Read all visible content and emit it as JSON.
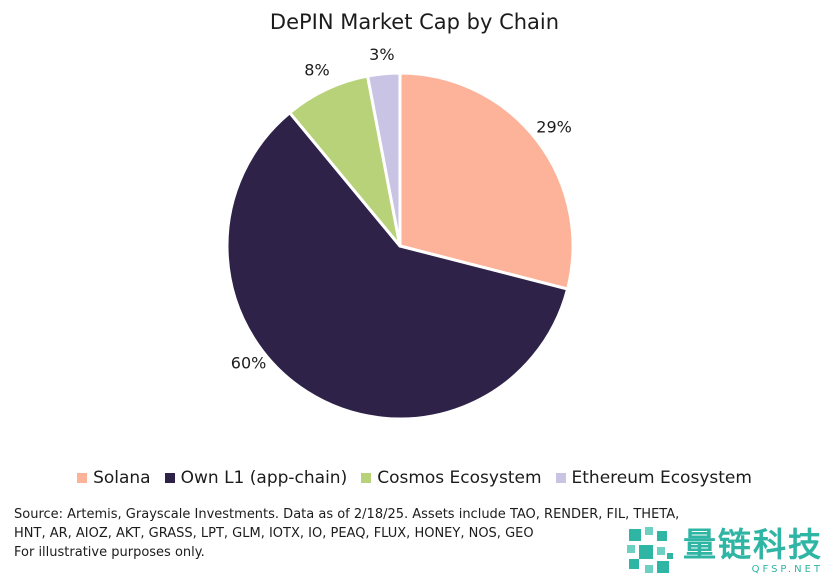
{
  "chart_data": {
    "type": "pie",
    "title": "DePIN Market Cap by Chain",
    "categories": [
      "Solana",
      "Own L1 (app-chain)",
      "Cosmos Ecosystem",
      "Ethereum Ecosystem"
    ],
    "values": [
      29,
      60,
      8,
      3
    ],
    "labels": [
      "29%",
      "60%",
      "8%",
      "3%"
    ],
    "colors": [
      "#fdb399",
      "#2e2249",
      "#b8d279",
      "#c9c3e4"
    ],
    "start": "12 o'clock, clockwise",
    "legend_position": "bottom"
  },
  "source": {
    "line1": "Source: Artemis, Grayscale Investments. Data as of 2/18/25. Assets include TAO, RENDER, FIL, THETA,",
    "line2": "HNT, AR, AIOZ, AKT, GRASS, LPT, GLM, IOTX, IO, PEAQ, FLUX, HONEY, NOS, GEO",
    "line3": "For illustrative purposes only."
  },
  "watermark": {
    "text_cn": "量链科技",
    "text_en": "QFSP.NET",
    "color": "#2fb5a4",
    "icon": "qr-style-logo-icon"
  }
}
